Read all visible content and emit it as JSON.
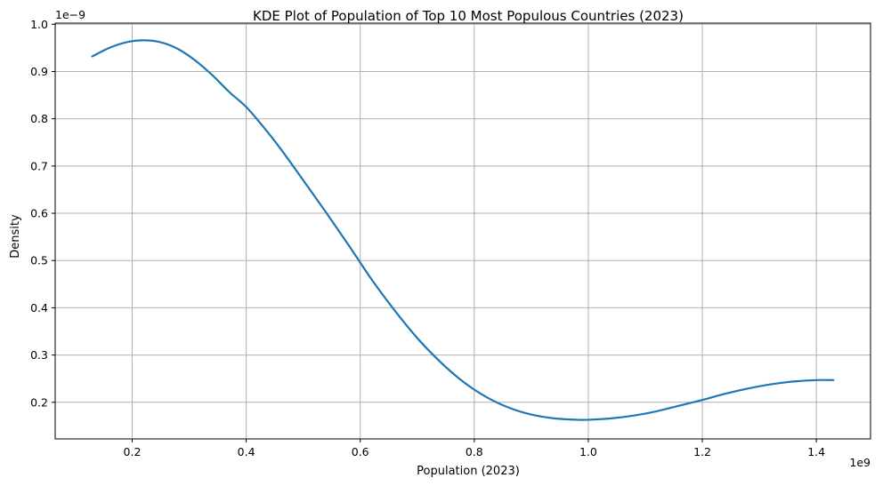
{
  "chart_data": {
    "type": "line",
    "title": "KDE Plot of Population of Top 10 Most Populous Countries (2023)",
    "xlabel": "Population (2023)",
    "ylabel": "Density",
    "x_multiplier_label": "1e9",
    "y_multiplier_label": "1e−9",
    "xlim": [
      0.065,
      1.495
    ],
    "ylim": [
      0.1225,
      1.0025
    ],
    "x_ticks": [
      0.2,
      0.4,
      0.6,
      0.8,
      1.0,
      1.2,
      1.4
    ],
    "x_tick_labels": [
      "0.2",
      "0.4",
      "0.6",
      "0.8",
      "1.0",
      "1.2",
      "1.4"
    ],
    "y_ticks": [
      0.2,
      0.3,
      0.4,
      0.5,
      0.6,
      0.7,
      0.8,
      0.9,
      1.0
    ],
    "y_tick_labels": [
      "0.2",
      "0.3",
      "0.4",
      "0.5",
      "0.6",
      "0.7",
      "0.8",
      "0.9",
      "1.0"
    ],
    "grid": true,
    "series": [
      {
        "color": "#1f77b4",
        "x": [
          0.13,
          0.16,
          0.19,
          0.22,
          0.25,
          0.28,
          0.31,
          0.34,
          0.37,
          0.4,
          0.43,
          0.46,
          0.5,
          0.54,
          0.58,
          0.62,
          0.66,
          0.7,
          0.74,
          0.78,
          0.82,
          0.86,
          0.9,
          0.94,
          0.98,
          1.0,
          1.04,
          1.08,
          1.12,
          1.16,
          1.2,
          1.24,
          1.28,
          1.32,
          1.36,
          1.4,
          1.43
        ],
        "y": [
          0.932,
          0.95,
          0.962,
          0.966,
          0.962,
          0.948,
          0.924,
          0.893,
          0.857,
          0.825,
          0.783,
          0.737,
          0.67,
          0.602,
          0.532,
          0.46,
          0.395,
          0.336,
          0.286,
          0.244,
          0.212,
          0.189,
          0.174,
          0.166,
          0.163,
          0.163,
          0.166,
          0.172,
          0.181,
          0.193,
          0.205,
          0.218,
          0.229,
          0.238,
          0.244,
          0.247,
          0.247
        ]
      }
    ]
  }
}
